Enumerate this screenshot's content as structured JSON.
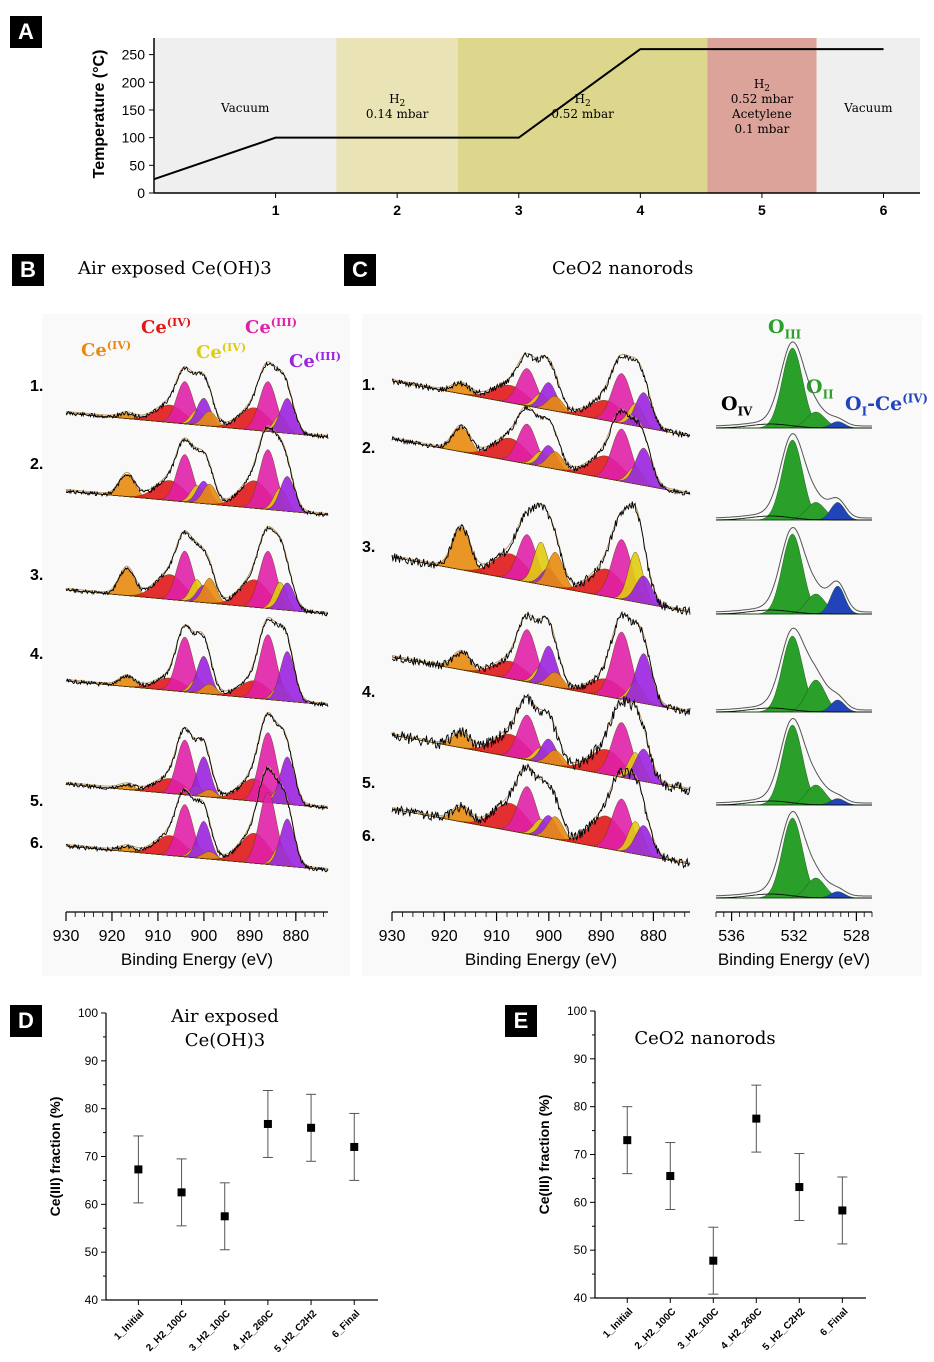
{
  "panels": {
    "a": {
      "label": "A",
      "ylabel": "Temperature (°C)",
      "yticks": [
        "0",
        "50",
        "100",
        "150",
        "200",
        "250"
      ],
      "xticks": [
        "1",
        "2",
        "3",
        "4",
        "5",
        "6"
      ],
      "regions": [
        {
          "color": "#efefef",
          "lines": [
            "Vacuum"
          ]
        },
        {
          "color": "#e9e3b6",
          "lines": [
            "H2",
            "0.14 mbar"
          ]
        },
        {
          "color": "#ddd78e",
          "lines": [
            "H2",
            "0.52 mbar"
          ]
        },
        {
          "color": "#dca39a",
          "lines": [
            "H2",
            "0.52 mbar",
            "Acetylene",
            "0.1 mbar"
          ]
        },
        {
          "color": "#efefef",
          "lines": [
            "Vacuum"
          ]
        }
      ],
      "temperature_profile": [
        [
          0.0,
          25
        ],
        [
          1.0,
          100
        ],
        [
          3.0,
          100
        ],
        [
          4.0,
          260
        ],
        [
          6.0,
          260
        ]
      ]
    },
    "b": {
      "label": "B",
      "title": "Air exposed Ce(OH)3",
      "species": [
        {
          "text": "Ce(IV)",
          "color": "#e88b10"
        },
        {
          "text": "Ce(IV)",
          "color": "#e01818"
        },
        {
          "text": "Ce(IV)",
          "color": "#e0cc10"
        },
        {
          "text": "Ce(III)",
          "color": "#e020a8"
        },
        {
          "text": "Ce(III)",
          "color": "#9a24e0"
        }
      ],
      "spectra": [
        "1.",
        "2.",
        "3.",
        "4.",
        "5.",
        "6."
      ],
      "xticks": [
        "930",
        "920",
        "910",
        "900",
        "890",
        "880"
      ],
      "xlabel": "Binding Energy (eV)"
    },
    "c": {
      "label": "C",
      "title": "CeO2 nanorods",
      "spectra": [
        "1.",
        "2.",
        "3.",
        "4.",
        "5.",
        "6."
      ],
      "xticks": [
        "930",
        "920",
        "910",
        "900",
        "890",
        "880"
      ],
      "xlabel": "Binding Energy (eV)",
      "o_species": [
        {
          "text": "OIII",
          "color": "#2aa02a"
        },
        {
          "text": "OII",
          "color": "#2aa02a"
        },
        {
          "text": "OIV",
          "color": "#000000"
        },
        {
          "text": "OI-Ce(IV)",
          "color": "#2244bb"
        }
      ],
      "o_xticks": [
        "536",
        "532",
        "528"
      ],
      "o_xlabel": "Binding Energy (eV)"
    },
    "d": {
      "label": "D",
      "title_line1": "Air exposed",
      "title_line2": "Ce(OH)3"
    },
    "e": {
      "label": "E",
      "title": "CeO2 nanorods"
    }
  },
  "chart_data": [
    {
      "type": "line",
      "panel": "A",
      "x": [
        0,
        1,
        3,
        4,
        6
      ],
      "y": [
        25,
        100,
        100,
        260,
        260
      ],
      "xlim": [
        0,
        6.3
      ],
      "ylim": [
        0,
        280
      ],
      "ylabel": "Temperature (°C)",
      "regions": [
        {
          "x": [
            0,
            1.5
          ],
          "label": "Vacuum"
        },
        {
          "x": [
            1.5,
            2.5
          ],
          "label": "H2 0.14 mbar"
        },
        {
          "x": [
            2.5,
            4.55
          ],
          "label": "H2 0.52 mbar"
        },
        {
          "x": [
            4.55,
            5.45
          ],
          "label": "H2 0.52 mbar Acetylene 0.1 mbar"
        },
        {
          "x": [
            5.45,
            6.3
          ],
          "label": "Vacuum"
        }
      ]
    },
    {
      "type": "scatter",
      "panel": "D",
      "title": "Air exposed Ce(OH)3",
      "categories": [
        "1_Initial",
        "2_H2_100C",
        "3_H2_100C",
        "4_H2_260C",
        "5_H2_C2H2",
        "6_Final"
      ],
      "values": [
        67.3,
        62.5,
        57.5,
        76.8,
        76.0,
        72.0
      ],
      "errors": [
        7,
        7,
        7,
        7,
        7,
        7
      ],
      "ylabel": "Ce(III) fraction (%)",
      "ylim": [
        40,
        100
      ],
      "yticks": [
        40,
        50,
        60,
        70,
        80,
        90,
        100
      ]
    },
    {
      "type": "scatter",
      "panel": "E",
      "title": "CeO2 nanorods",
      "categories": [
        "1_Initial",
        "2_H2_100C",
        "3_H2_100C",
        "4_H2_260C",
        "5_H2_C2H2",
        "6_Final"
      ],
      "values": [
        73.0,
        65.5,
        47.8,
        77.5,
        63.2,
        58.3
      ],
      "errors": [
        7,
        7,
        7,
        7,
        7,
        7
      ],
      "ylabel": "Ce(III) fraction (%)",
      "ylim": [
        40,
        100
      ],
      "yticks": [
        40,
        50,
        60,
        70,
        80,
        90,
        100
      ]
    }
  ]
}
